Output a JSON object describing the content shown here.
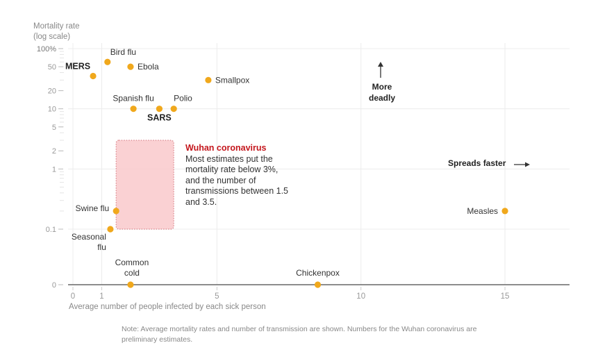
{
  "chart_data": {
    "type": "scatter",
    "title": "",
    "xlabel": "Average number of people infected by each sick person",
    "ylabel": "Mortality rate (log scale)",
    "ylabel_lines": [
      "Mortality rate",
      "(log scale)"
    ],
    "x_scale": "linear",
    "y_scale": "log",
    "xlim": [
      0,
      17
    ],
    "ylim": [
      0,
      100
    ],
    "grid": true,
    "x_ticks": [
      {
        "value": 0,
        "label": "0"
      },
      {
        "value": 1,
        "label": "1"
      },
      {
        "value": 5,
        "label": "5"
      },
      {
        "value": 10,
        "label": "10"
      },
      {
        "value": 15,
        "label": "15"
      }
    ],
    "y_ticks": [
      {
        "value": 100,
        "label": "100%"
      },
      {
        "value": 50,
        "label": "50"
      },
      {
        "value": 20,
        "label": "20"
      },
      {
        "value": 10,
        "label": "10"
      },
      {
        "value": 5,
        "label": "5"
      },
      {
        "value": 2,
        "label": "2"
      },
      {
        "value": 1,
        "label": "1"
      },
      {
        "value": 0.1,
        "label": "0.1"
      },
      {
        "value": 0,
        "label": "0"
      }
    ],
    "point_color": "#f0a81c",
    "highlight_color": "#c4161c",
    "points": [
      {
        "name": "MERS",
        "x": 0.7,
        "y": 35,
        "bold": true
      },
      {
        "name": "Bird flu",
        "x": 1.2,
        "y": 60,
        "bold": false
      },
      {
        "name": "Ebola",
        "x": 2.0,
        "y": 50,
        "bold": false
      },
      {
        "name": "Smallpox",
        "x": 4.7,
        "y": 30,
        "bold": false
      },
      {
        "name": "Spanish flu",
        "x": 2.1,
        "y": 10,
        "bold": false
      },
      {
        "name": "SARS",
        "x": 3.0,
        "y": 10,
        "bold": true
      },
      {
        "name": "Polio",
        "x": 3.5,
        "y": 10,
        "bold": false
      },
      {
        "name": "Swine flu",
        "x": 1.5,
        "y": 0.2,
        "bold": false
      },
      {
        "name": "Seasonal flu",
        "x": 1.3,
        "y": 0.1,
        "bold": false
      },
      {
        "name": "Common cold",
        "x": 2.0,
        "y": 0,
        "bold": false
      },
      {
        "name": "Chickenpox",
        "x": 8.5,
        "y": 0,
        "bold": false
      },
      {
        "name": "Measles",
        "x": 15,
        "y": 0.2,
        "bold": false
      }
    ],
    "highlight_region": {
      "name": "Wuhan coronavirus",
      "x_range": [
        1.5,
        3.5
      ],
      "y_range": [
        0.1,
        3
      ]
    },
    "annotations": {
      "wuhan_title": "Wuhan coronavirus",
      "wuhan_text": "Most estimates put the mortality rate below 3%, and the number of transmissions between 1.5 and 3.5.",
      "more_deadly_line1": "More",
      "more_deadly_line2": "deadly",
      "spreads_faster": "Spreads faster"
    },
    "note": "Note: Average mortality rates and number of transmission are shown. Numbers for the Wuhan coronavirus are preliminary estimates."
  }
}
